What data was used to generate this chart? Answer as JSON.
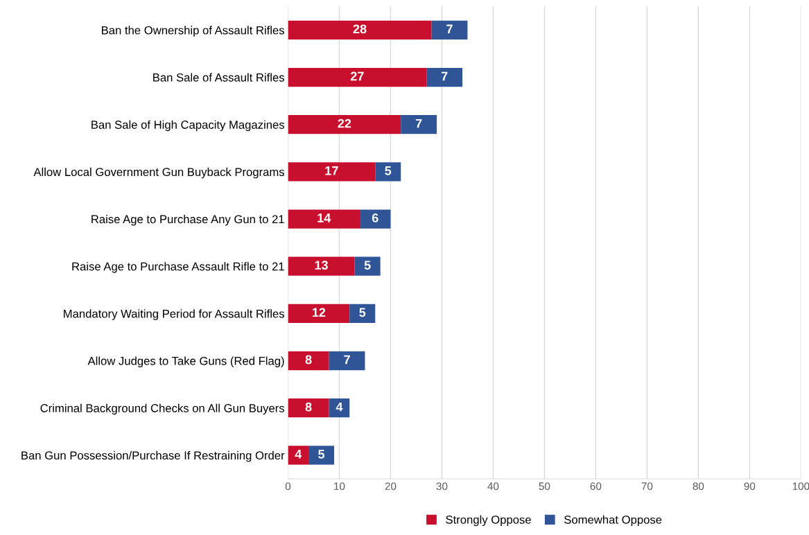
{
  "chart_data": {
    "type": "bar",
    "orientation": "horizontal",
    "stacked": true,
    "data_labels": true,
    "grid": "x",
    "legend": "bottom",
    "categories": [
      "Ban the Ownership of Assault Rifles",
      "Ban Sale of Assault Rifles",
      "Ban Sale of High Capacity Magazines",
      "Allow Local Government Gun Buyback Programs",
      "Raise Age to Purchase Any Gun to 21",
      "Raise Age to Purchase Assault Rifle to 21",
      "Mandatory Waiting Period for Assault Rifles",
      "Allow Judges to Take Guns (Red Flag)",
      "Criminal Background Checks on All Gun Buyers",
      "Ban Gun Possession/Purchase If Restraining Order"
    ],
    "series": [
      {
        "name": "Strongly Oppose",
        "color": "#c8102e",
        "values": [
          28,
          27,
          22,
          17,
          14,
          13,
          12,
          8,
          8,
          4
        ]
      },
      {
        "name": "Somewhat Oppose",
        "color": "#2f5597",
        "values": [
          7,
          7,
          7,
          5,
          6,
          5,
          5,
          7,
          4,
          5
        ]
      }
    ],
    "xlim": [
      0,
      100
    ],
    "xticks": [
      0,
      10,
      20,
      30,
      40,
      50,
      60,
      70,
      80,
      90,
      100
    ]
  }
}
